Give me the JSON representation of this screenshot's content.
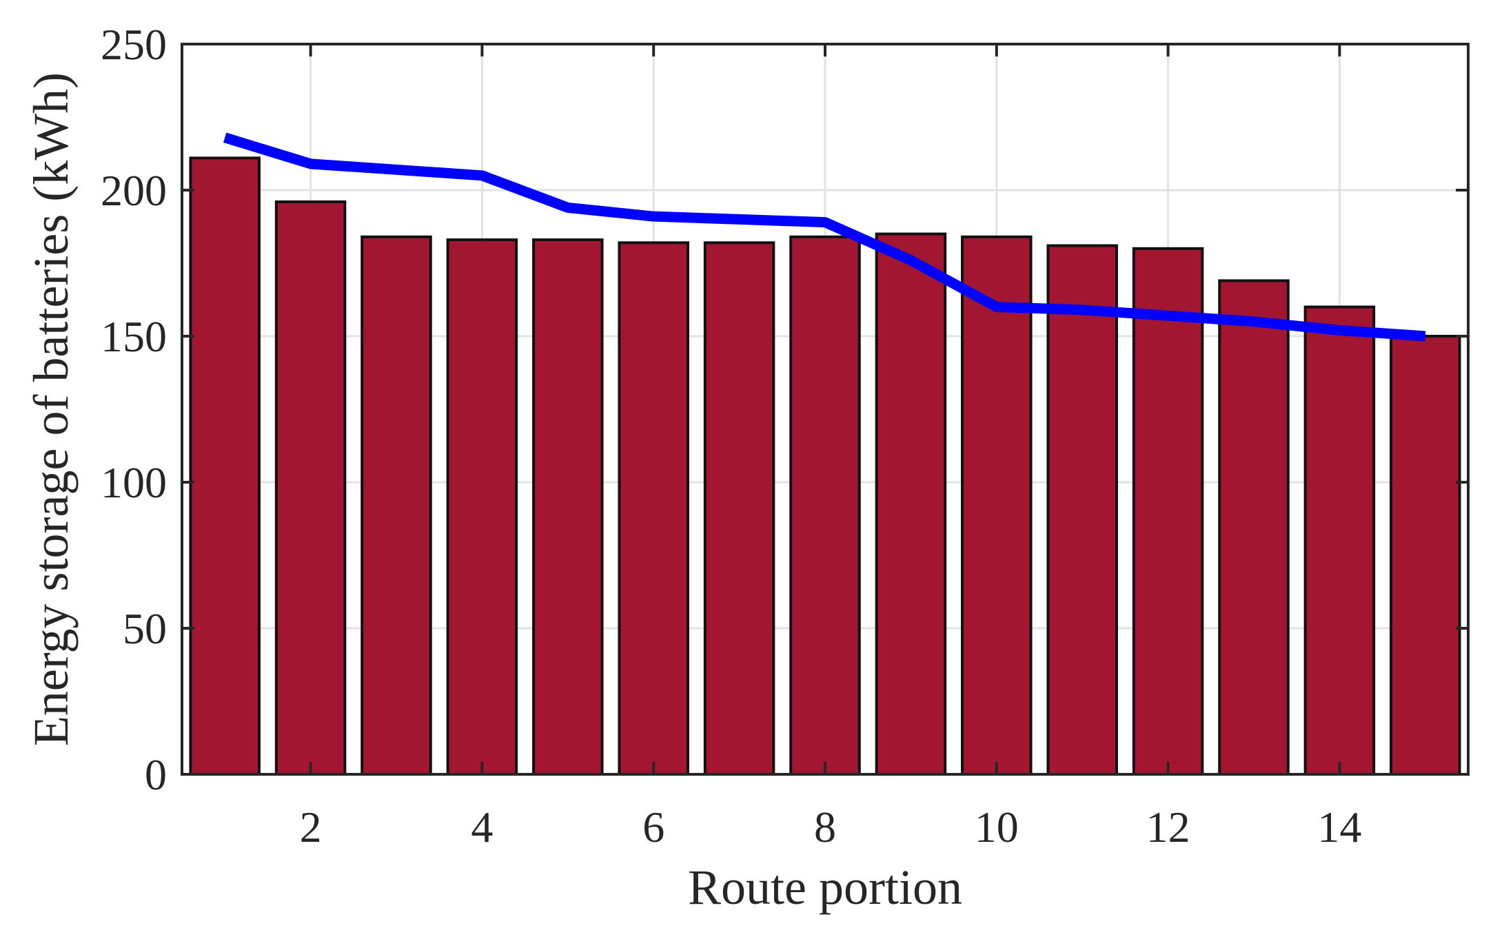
{
  "chart_data": {
    "type": "bar",
    "title": "",
    "xlabel": "Route portion",
    "ylabel": "Energy storage of batteries (kWh)",
    "xlim": [
      0.5,
      15.5
    ],
    "ylim": [
      0,
      250
    ],
    "xticks": [
      2,
      4,
      6,
      8,
      10,
      12,
      14
    ],
    "yticks": [
      0,
      50,
      100,
      150,
      200,
      250
    ],
    "grid": true,
    "categories": [
      1,
      2,
      3,
      4,
      5,
      6,
      7,
      8,
      9,
      10,
      11,
      12,
      13,
      14,
      15
    ],
    "series": [
      {
        "type": "bar",
        "values": [
          211,
          196,
          184,
          183,
          183,
          182,
          182,
          184,
          185,
          184,
          181,
          180,
          169,
          160,
          150
        ],
        "color": "#A21631"
      },
      {
        "type": "line",
        "values": [
          218,
          209,
          207,
          205,
          194,
          191,
          190,
          189,
          176,
          160,
          159,
          157,
          155,
          152,
          150
        ],
        "color": "#0000FF"
      }
    ]
  }
}
